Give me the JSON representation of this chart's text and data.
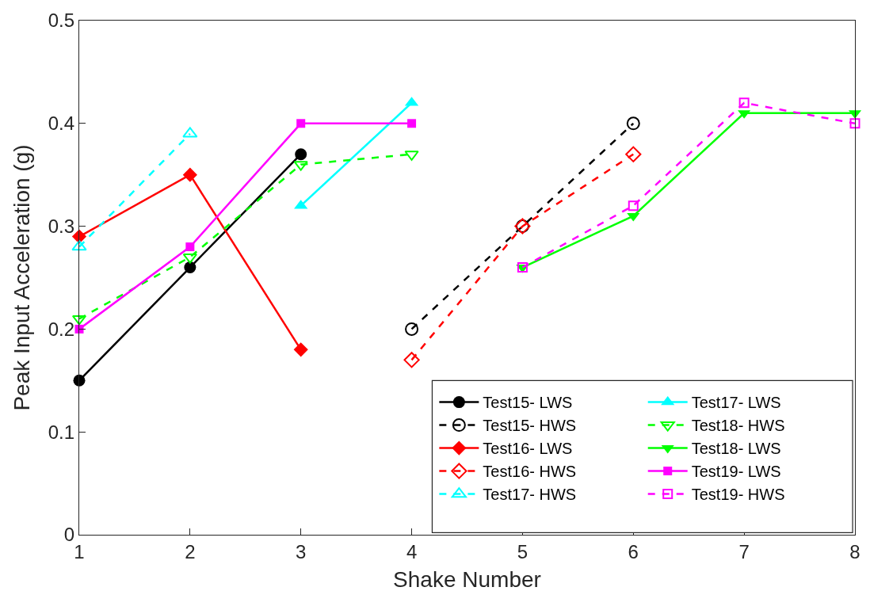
{
  "chart_data": {
    "type": "line",
    "xlabel": "Shake Number",
    "ylabel": "Peak Input Acceleration (g)",
    "xlim": [
      1,
      8
    ],
    "xticks": [
      1,
      2,
      3,
      4,
      5,
      6,
      7,
      8
    ],
    "ylim": [
      0,
      0.5
    ],
    "yticks": [
      0,
      0.1,
      0.2,
      0.3,
      0.4,
      0.5
    ],
    "legend": "bottom right",
    "series": [
      {
        "name": "Test15- LWS",
        "color": "#000000",
        "marker": "circle",
        "line_style": "solid",
        "x": [
          1,
          2,
          3
        ],
        "values": [
          0.15,
          0.26,
          0.37
        ]
      },
      {
        "name": "Test15- HWS",
        "color": "#000000",
        "marker": "circle",
        "line_style": "dashed",
        "x": [
          4,
          5,
          6
        ],
        "values": [
          0.2,
          0.3,
          0.4
        ]
      },
      {
        "name": "Test16- LWS",
        "color": "#ff0000",
        "marker": "diamond",
        "line_style": "solid",
        "x": [
          1,
          2,
          3
        ],
        "values": [
          0.29,
          0.35,
          0.18
        ]
      },
      {
        "name": "Test16- HWS",
        "color": "#ff0000",
        "marker": "diamond",
        "line_style": "dashed",
        "x": [
          4,
          5,
          6
        ],
        "values": [
          0.17,
          0.3,
          0.37
        ]
      },
      {
        "name": "Test17- HWS",
        "color": "#00ffff",
        "marker": "triangle",
        "line_style": "dashed",
        "x": [
          1,
          2
        ],
        "values": [
          0.28,
          0.39
        ]
      },
      {
        "name": "Test17- LWS",
        "color": "#00ffff",
        "marker": "triangle",
        "line_style": "solid",
        "x": [
          3,
          4
        ],
        "values": [
          0.32,
          0.42
        ]
      },
      {
        "name": "Test18- HWS",
        "color": "#00ff00",
        "marker": "triangle-down",
        "line_style": "dashed",
        "x": [
          1,
          2,
          3,
          4
        ],
        "values": [
          0.21,
          0.27,
          0.36,
          0.37
        ]
      },
      {
        "name": "Test18- LWS",
        "color": "#00ff00",
        "marker": "triangle-down",
        "line_style": "solid",
        "x": [
          5,
          6,
          7,
          8
        ],
        "values": [
          0.26,
          0.31,
          0.41,
          0.41
        ]
      },
      {
        "name": "Test19- LWS",
        "color": "#ff00ff",
        "marker": "square",
        "line_style": "solid",
        "x": [
          1,
          2,
          3,
          4
        ],
        "values": [
          0.2,
          0.28,
          0.4,
          0.4
        ]
      },
      {
        "name": "Test19- HWS",
        "color": "#ff00ff",
        "marker": "square",
        "line_style": "dashed",
        "x": [
          5,
          6,
          7,
          8
        ],
        "values": [
          0.26,
          0.32,
          0.42,
          0.4
        ]
      }
    ]
  }
}
